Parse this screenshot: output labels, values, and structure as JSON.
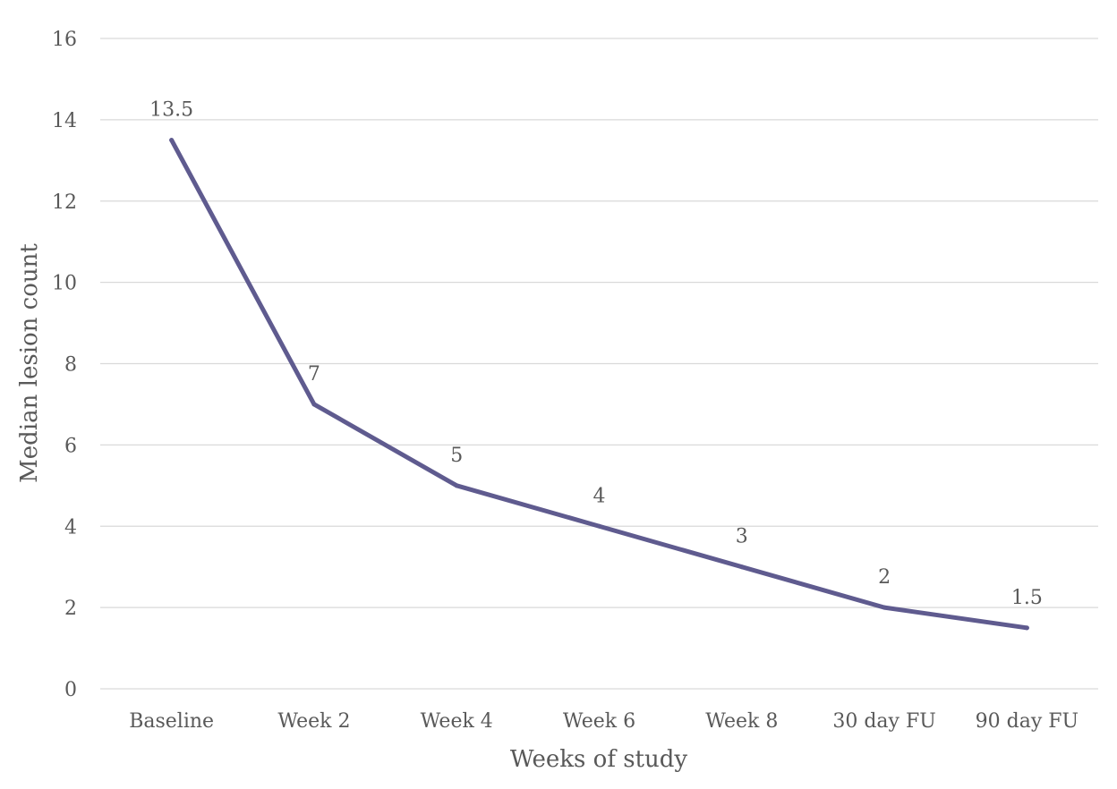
{
  "chart_data": {
    "type": "line",
    "title": "",
    "xlabel": "Weeks of study",
    "ylabel": "Median lesion count",
    "categories": [
      "Baseline",
      "Week 2",
      "Week 4",
      "Week 6",
      "Week 8",
      "30 day FU",
      "90 day FU"
    ],
    "series": [
      {
        "values": [
          13.5,
          7,
          5,
          4,
          3,
          2,
          1.5
        ],
        "data_labels": [
          "13.5",
          "7",
          "5",
          "4",
          "3",
          "2",
          "1.5"
        ]
      }
    ],
    "ylim": [
      0,
      16
    ],
    "yticks": [
      "0",
      "2",
      "4",
      "6",
      "8",
      "10",
      "12",
      "14",
      "16"
    ],
    "grid": true,
    "legend": "none",
    "colors": {
      "line": "#5f5b8f",
      "grid": "#d9d9d9",
      "text": "#595959"
    }
  }
}
